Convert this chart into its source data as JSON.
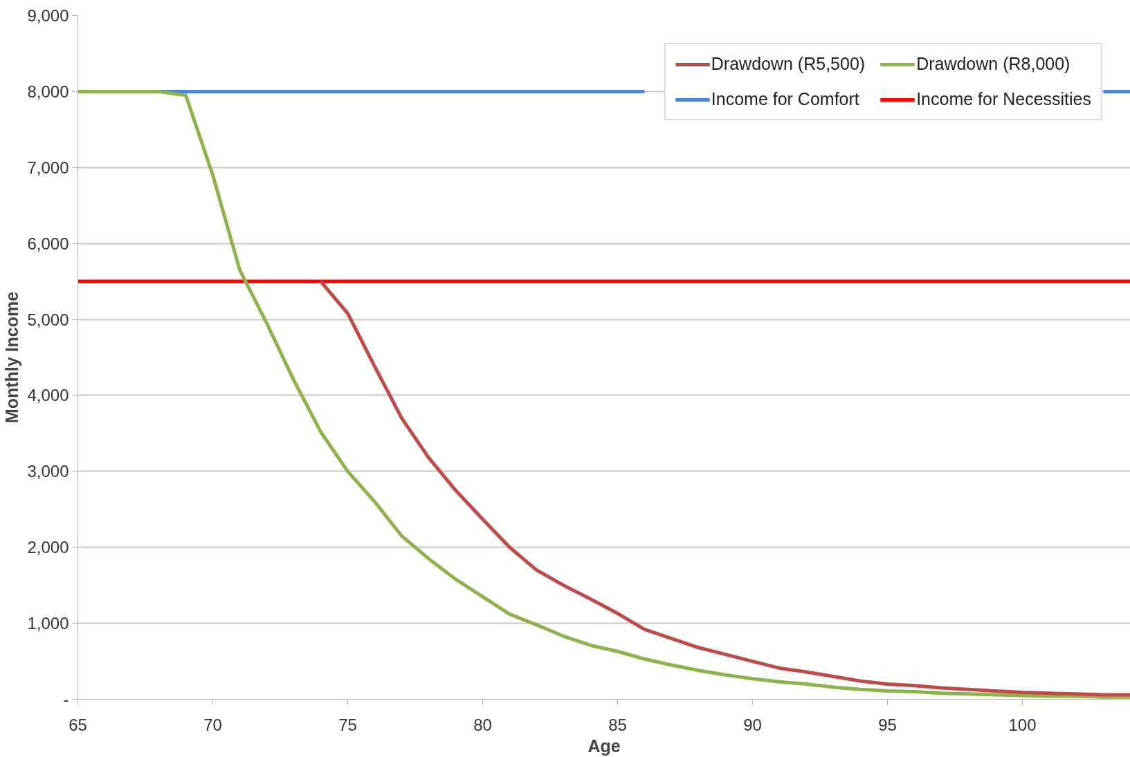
{
  "chart_data": {
    "type": "line",
    "xlabel": "Age",
    "ylabel": "Monthly Income",
    "x": [
      65,
      66,
      67,
      68,
      69,
      70,
      71,
      72,
      73,
      74,
      75,
      76,
      77,
      78,
      79,
      80,
      81,
      82,
      83,
      84,
      85,
      86,
      87,
      88,
      89,
      90,
      91,
      92,
      93,
      94,
      95,
      96,
      97,
      98,
      99,
      100,
      101,
      102,
      103,
      104
    ],
    "series": [
      {
        "name": "Drawdown (R5,500)",
        "color": "#be4b48",
        "values": [
          null,
          null,
          null,
          null,
          null,
          null,
          null,
          null,
          null,
          5500,
          5080,
          4380,
          3700,
          3180,
          2750,
          2370,
          2000,
          1700,
          1500,
          1320,
          1130,
          920,
          800,
          680,
          590,
          500,
          410,
          360,
          300,
          240,
          200,
          180,
          150,
          130,
          110,
          90,
          80,
          70,
          60,
          60
        ]
      },
      {
        "name": "Drawdown (R8,000)",
        "color": "#8cb44a",
        "values": [
          8000,
          8000,
          8000,
          8000,
          7950,
          6900,
          5650,
          4950,
          4200,
          3520,
          3000,
          2600,
          2150,
          1850,
          1580,
          1350,
          1120,
          980,
          830,
          710,
          630,
          530,
          450,
          380,
          320,
          270,
          230,
          200,
          160,
          130,
          110,
          100,
          80,
          70,
          60,
          50,
          40,
          40,
          30,
          30
        ]
      },
      {
        "name": "Income for Comfort",
        "color": "#4a86d4",
        "values": [
          null,
          null,
          null,
          8000,
          8000,
          8000,
          8000,
          8000,
          8000,
          8000,
          8000,
          8000,
          8000,
          8000,
          8000,
          8000,
          8000,
          8000,
          8000,
          8000,
          8000,
          8000,
          null,
          null,
          null,
          null,
          null,
          null,
          null,
          null,
          null,
          null,
          null,
          null,
          null,
          null,
          null,
          null,
          8000,
          8000
        ]
      },
      {
        "name": "Income for Necessities",
        "color": "#ff0000",
        "values": [
          5500,
          5500,
          5500,
          5500,
          5500,
          5500,
          5500,
          5500,
          5500,
          5500,
          5500,
          5500,
          5500,
          5500,
          5500,
          5500,
          5500,
          5500,
          5500,
          5500,
          5500,
          5500,
          5500,
          5500,
          5500,
          5500,
          5500,
          5500,
          5500,
          5500,
          5500,
          5500,
          5500,
          5500,
          5500,
          5500,
          5500,
          5500,
          5500,
          5500
        ]
      }
    ],
    "xlim": [
      65,
      104
    ],
    "xticks": [
      65,
      70,
      75,
      80,
      85,
      90,
      95,
      100
    ],
    "ylim": [
      0,
      9000
    ],
    "yticks": [
      {
        "value": 0,
        "label": "-"
      },
      {
        "value": 1000,
        "label": "1,000"
      },
      {
        "value": 2000,
        "label": "2,000"
      },
      {
        "value": 3000,
        "label": "3,000"
      },
      {
        "value": 4000,
        "label": "4,000"
      },
      {
        "value": 5000,
        "label": "5,000"
      },
      {
        "value": 6000,
        "label": "6,000"
      },
      {
        "value": 7000,
        "label": "7,000"
      },
      {
        "value": 8000,
        "label": "8,000"
      },
      {
        "value": 9000,
        "label": "9,000"
      }
    ],
    "grid": "y",
    "legend": "top right",
    "marker": "none",
    "line_style": "solid"
  }
}
